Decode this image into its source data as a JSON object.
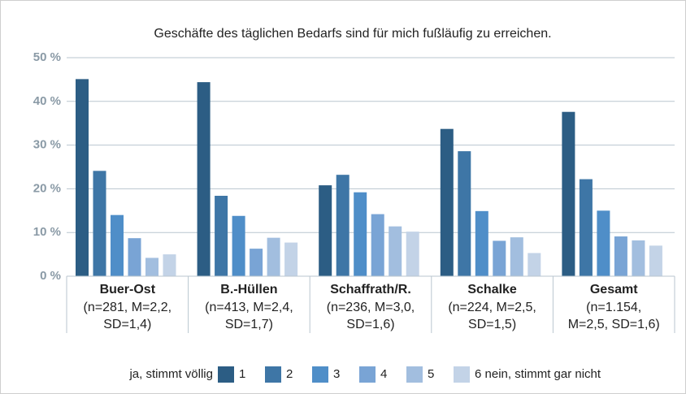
{
  "chart_data": {
    "type": "bar",
    "title": "Geschäfte des täglichen Bedarfs sind für mich fußläufig zu erreichen.",
    "categories": [
      "Buer-Ost",
      "B.-Hüllen",
      "Schaffrath/R.",
      "Schalke",
      "Gesamt"
    ],
    "category_notes": [
      [
        "(n=281, M=2,2,",
        "SD=1,4)"
      ],
      [
        "(n=413, M=2,4,",
        "SD=1,7)"
      ],
      [
        "(n=236, M=3,0,",
        "SD=1,6)"
      ],
      [
        "(n=224, M=2,5,",
        "SD=1,5)"
      ],
      [
        "(n=1.154,",
        "M=2,5, SD=1,6)"
      ]
    ],
    "legend_prefix": "ja, stimmt völlig",
    "series": [
      {
        "name": "1",
        "color": "#2c5d84",
        "values": [
          45.1,
          44.4,
          20.8,
          33.7,
          37.6
        ]
      },
      {
        "name": "2",
        "color": "#3e76a6",
        "values": [
          24.1,
          18.4,
          23.2,
          28.6,
          22.2
        ]
      },
      {
        "name": "3",
        "color": "#4f8ec8",
        "values": [
          14.0,
          13.8,
          19.2,
          14.9,
          15.0
        ]
      },
      {
        "name": "4",
        "color": "#79a4d5",
        "values": [
          8.7,
          6.3,
          14.2,
          8.1,
          9.1
        ]
      },
      {
        "name": "5",
        "color": "#a2bedf",
        "values": [
          4.2,
          8.8,
          11.4,
          8.9,
          8.2
        ]
      },
      {
        "name": "6 nein, stimmt gar nicht",
        "color": "#c3d3e7",
        "values": [
          5.0,
          7.7,
          10.2,
          5.3,
          7.0
        ]
      }
    ],
    "ylim": [
      0,
      50
    ],
    "yticks": [
      {
        "value": 0,
        "label": "0 %"
      },
      {
        "value": 10,
        "label": "10 %"
      },
      {
        "value": 20,
        "label": "20 %"
      },
      {
        "value": 30,
        "label": "30 %"
      },
      {
        "value": 40,
        "label": "40 %"
      },
      {
        "value": 50,
        "label": "50 %"
      }
    ],
    "grid": true
  }
}
